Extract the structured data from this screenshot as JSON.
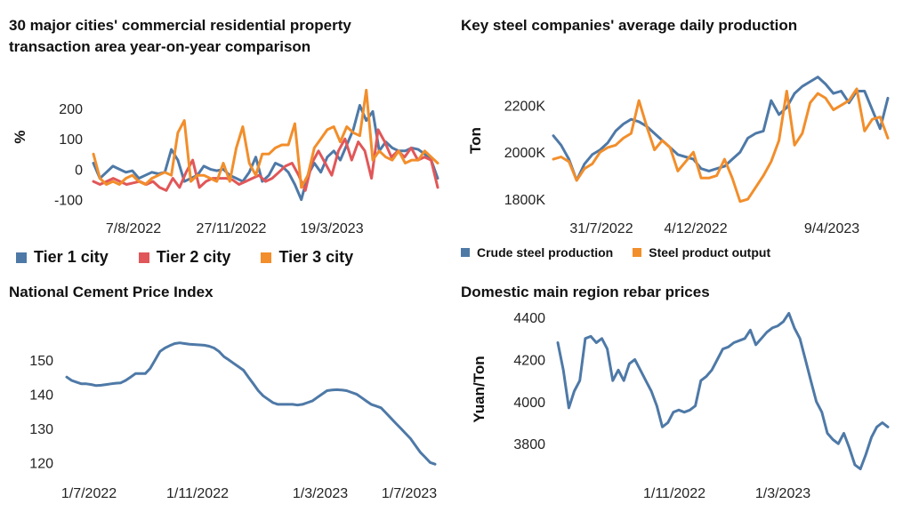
{
  "chart_data": [
    {
      "type": "line",
      "title": "30 major cities' commercial residential property transaction area year-on-year comparison",
      "title_lines": [
        "30 major cities' commercial residential property",
        "transaction area year-on-year comparison"
      ],
      "ylabel": "%",
      "xlabel": "",
      "x_tick_labels": [
        "7/8/2022",
        "27/11/2022",
        "19/3/2023"
      ],
      "y_ticks": [
        -100,
        0,
        100,
        200
      ],
      "ylim": [
        -110,
        270
      ],
      "legend_position": "bottom",
      "series": [
        {
          "name": "Tier 1 city",
          "color": "#4e79a7",
          "values": [
            20,
            -30,
            -10,
            10,
            0,
            -10,
            -5,
            -30,
            -20,
            -10,
            -15,
            -10,
            65,
            30,
            -40,
            -30,
            -20,
            10,
            0,
            -5,
            0,
            -20,
            -30,
            -40,
            -10,
            40,
            -40,
            -20,
            20,
            10,
            -10,
            -50,
            -100,
            -20,
            20,
            -10,
            40,
            60,
            30,
            80,
            130,
            210,
            160,
            190,
            60,
            90,
            70,
            60,
            60,
            70,
            65,
            50,
            30,
            -30
          ]
        },
        {
          "name": "Tier 2 city",
          "color": "#e15759",
          "values": [
            -40,
            -50,
            -40,
            -30,
            -40,
            -50,
            -45,
            -40,
            -50,
            -40,
            -60,
            -70,
            -30,
            -60,
            -10,
            30,
            -60,
            -40,
            -30,
            -30,
            -30,
            -35,
            -50,
            -40,
            -30,
            -20,
            -40,
            -30,
            -10,
            10,
            20,
            -20,
            -70,
            20,
            60,
            20,
            -20,
            60,
            100,
            30,
            90,
            60,
            -30,
            130,
            90,
            40,
            60,
            40,
            70,
            30,
            40,
            30,
            -60
          ]
        },
        {
          "name": "Tier 3 city",
          "color": "#f28e2b",
          "values": [
            50,
            -30,
            -50,
            -40,
            -50,
            -30,
            -20,
            -40,
            -50,
            -30,
            -20,
            -10,
            -20,
            120,
            160,
            -40,
            -20,
            -20,
            -30,
            -40,
            20,
            -40,
            70,
            140,
            20,
            -20,
            50,
            50,
            70,
            80,
            80,
            150,
            -60,
            -20,
            70,
            100,
            130,
            140,
            90,
            140,
            120,
            110,
            260,
            30,
            60,
            40,
            30,
            60,
            20,
            30,
            30,
            60,
            40,
            20
          ]
        }
      ]
    },
    {
      "type": "line",
      "title": "Key steel companies' average daily production",
      "ylabel": "Ton",
      "xlabel": "",
      "x_tick_labels": [
        "31/7/2022",
        "4/12/2022",
        "9/4/2023"
      ],
      "y_ticks": [
        1800000,
        2000000,
        2200000
      ],
      "y_tick_labels": [
        "1800K",
        "2000K",
        "2200K"
      ],
      "ylim": [
        1770000,
        2330000
      ],
      "legend_position": "bottom",
      "series": [
        {
          "name": "Crude steel production",
          "color": "#4e79a7",
          "values": [
            2070000,
            2030000,
            1970000,
            1880000,
            1950000,
            1990000,
            2010000,
            2040000,
            2090000,
            2120000,
            2140000,
            2130000,
            2110000,
            2080000,
            2050000,
            2020000,
            1990000,
            1980000,
            1970000,
            1930000,
            1920000,
            1930000,
            1940000,
            1970000,
            2000000,
            2060000,
            2080000,
            2090000,
            2220000,
            2160000,
            2190000,
            2250000,
            2280000,
            2300000,
            2320000,
            2290000,
            2250000,
            2260000,
            2210000,
            2260000,
            2260000,
            2180000,
            2100000,
            2230000
          ]
        },
        {
          "name": "Steel product output",
          "color": "#f28e2b",
          "values": [
            1970000,
            1980000,
            1960000,
            1880000,
            1930000,
            1950000,
            2000000,
            2020000,
            2030000,
            2060000,
            2080000,
            2220000,
            2110000,
            2010000,
            2050000,
            2020000,
            1920000,
            1960000,
            2000000,
            1890000,
            1890000,
            1900000,
            1970000,
            1890000,
            1790000,
            1800000,
            1850000,
            1900000,
            1960000,
            2050000,
            2260000,
            2030000,
            2080000,
            2210000,
            2250000,
            2230000,
            2180000,
            2200000,
            2220000,
            2270000,
            2090000,
            2140000,
            2150000,
            2060000
          ]
        }
      ]
    },
    {
      "type": "line",
      "title": "National Cement Price Index",
      "ylabel": "",
      "xlabel": "",
      "x_tick_labels": [
        "1/7/2022",
        "1/11/2022",
        "1/3/2023",
        "1/7/2023"
      ],
      "y_ticks": [
        120,
        130,
        140,
        150
      ],
      "ylim": [
        118,
        157
      ],
      "series": [
        {
          "name": "",
          "color": "#4e79a7",
          "values": [
            145,
            144,
            143.5,
            143,
            143,
            142.8,
            142.5,
            142.6,
            142.8,
            143,
            143.2,
            143.3,
            144,
            145,
            146,
            146,
            146,
            147.5,
            150,
            152.5,
            153.5,
            154.2,
            154.8,
            155,
            154.8,
            154.6,
            154.5,
            154.4,
            154.3,
            154,
            153.5,
            152.5,
            151,
            150,
            149,
            148,
            147,
            145,
            143,
            141,
            139.5,
            138.5,
            137.5,
            137,
            137,
            137,
            137,
            136.8,
            137,
            137.5,
            138,
            139,
            140,
            141,
            141.2,
            141.3,
            141.2,
            141,
            140.5,
            140,
            139,
            138,
            137,
            136.5,
            136,
            134.5,
            133,
            131.5,
            130,
            128.5,
            127,
            125,
            123,
            121.5,
            120,
            119.5
          ]
        }
      ]
    },
    {
      "type": "line",
      "title": "Domestic main region rebar prices",
      "ylabel": "Yuan/Ton",
      "xlabel": "",
      "x_tick_labels": [
        "1/11/2022",
        "1/3/2023"
      ],
      "y_ticks": [
        3800,
        4000,
        4200,
        4400
      ],
      "ylim": [
        3670,
        4430
      ],
      "series": [
        {
          "name": "",
          "color": "#4e79a7",
          "values": [
            4280,
            4150,
            3970,
            4050,
            4100,
            4300,
            4310,
            4280,
            4300,
            4250,
            4100,
            4150,
            4100,
            4180,
            4200,
            4150,
            4100,
            4050,
            3980,
            3880,
            3900,
            3950,
            3960,
            3950,
            3960,
            3980,
            4100,
            4120,
            4150,
            4200,
            4250,
            4260,
            4280,
            4290,
            4300,
            4340,
            4270,
            4300,
            4330,
            4350,
            4360,
            4380,
            4420,
            4350,
            4300,
            4200,
            4100,
            4000,
            3950,
            3850,
            3820,
            3800,
            3850,
            3780,
            3700,
            3680,
            3750,
            3830,
            3880,
            3900,
            3880
          ]
        }
      ]
    }
  ]
}
